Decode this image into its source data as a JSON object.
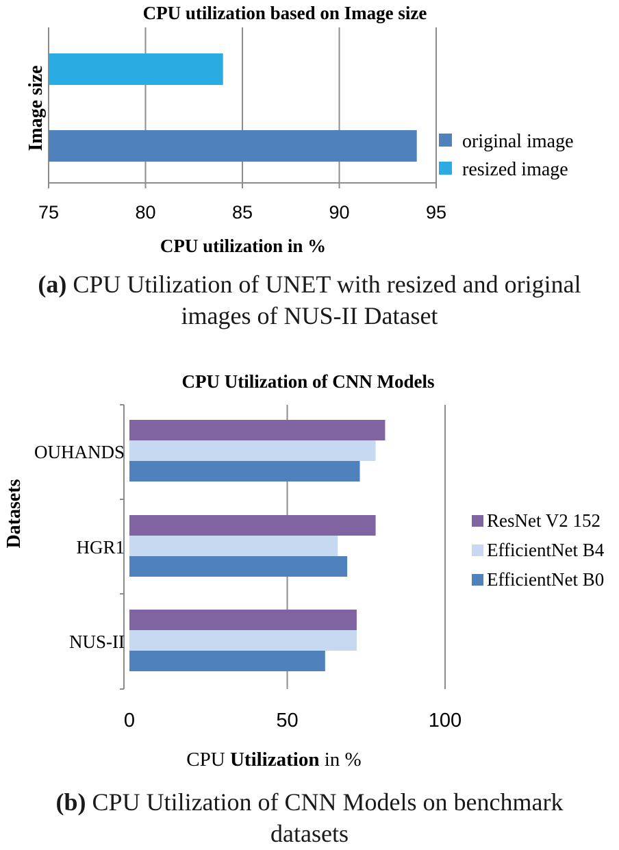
{
  "charts": [
    {
      "type": "bar",
      "orientation": "horizontal",
      "title": "CPU  utilization based on Image size",
      "xlabel": "CPU utilization in %",
      "ylabel": "Image size",
      "xlim": [
        75,
        95
      ],
      "xticks": [
        "75",
        "80",
        "85",
        "90",
        "95"
      ],
      "grid": true,
      "legend_position": "right",
      "series": [
        {
          "name": "original image",
          "color": "#4f81bd",
          "value": 94
        },
        {
          "name": "resized image",
          "color": "#2aace2",
          "value": 84
        }
      ],
      "caption_label": "(a)",
      "caption_text": " CPU Utilization of UNET with resized and original",
      "caption_text2": "images of NUS-II Dataset"
    },
    {
      "type": "bar",
      "orientation": "horizontal",
      "title": "CPU Utilization of CNN Models",
      "xlabel_part1": "CPU ",
      "xlabel_bold": "Utilization",
      "xlabel_part2": " in %",
      "ylabel": "Datasets",
      "xlim": [
        0,
        100
      ],
      "xticks": [
        "0",
        "50",
        "100"
      ],
      "grid": true,
      "legend_position": "right",
      "categories": [
        "OUHANDS",
        "HGR1",
        "NUS-II"
      ],
      "series": [
        {
          "name": "ResNet V2 152",
          "color": "#8064a2",
          "values": [
            81,
            78,
            72
          ]
        },
        {
          "name": "EfficientNet B4",
          "color": "#c6d9f1",
          "values": [
            78,
            66,
            72
          ]
        },
        {
          "name": "EfficientNet B0",
          "color": "#4f81bd",
          "values": [
            73,
            69,
            62
          ]
        }
      ],
      "caption_label": "(b)",
      "caption_text": " CPU Utilization of CNN Models on benchmark",
      "caption_text2": "datasets"
    }
  ]
}
